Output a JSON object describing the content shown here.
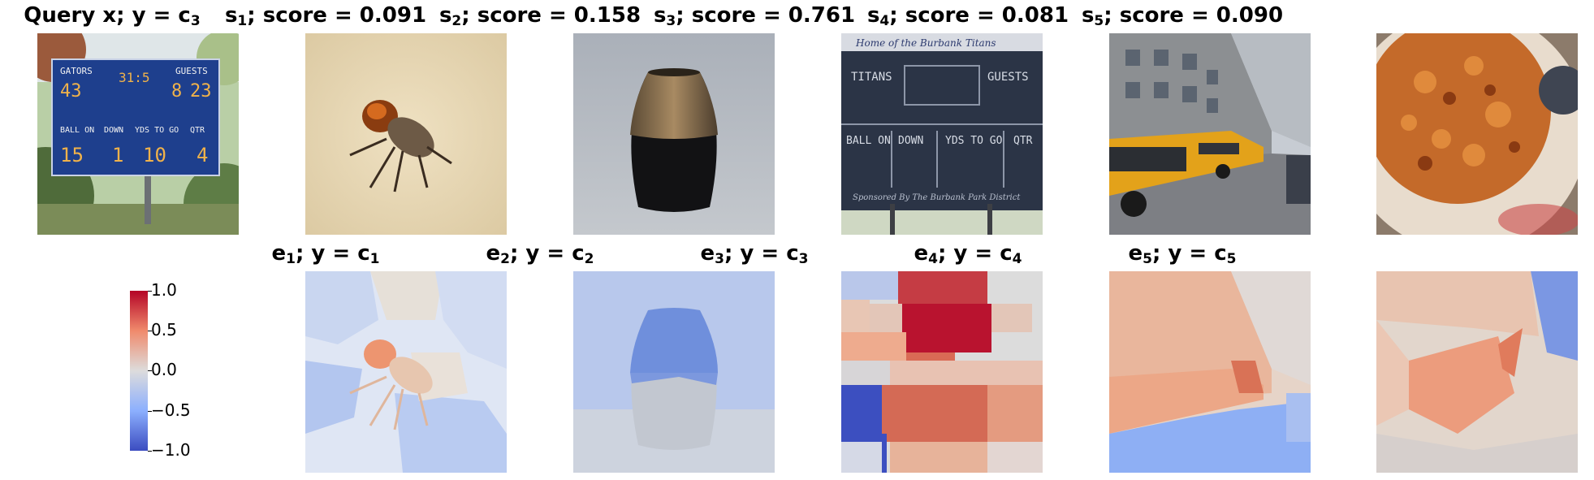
{
  "top_titles": [
    {
      "pre": "Query x; y = c",
      "sub": "3",
      "post": ""
    },
    {
      "pre": "s",
      "sub": "1",
      "post": "; score = 0.091"
    },
    {
      "pre": "s",
      "sub": "2",
      "post": "; score = 0.158"
    },
    {
      "pre": "s",
      "sub": "3",
      "post": "; score = 0.761"
    },
    {
      "pre": "s",
      "sub": "4",
      "post": "; score = 0.081"
    },
    {
      "pre": "s",
      "sub": "5",
      "post": "; score = 0.090"
    }
  ],
  "bottom_titles": [
    {
      "pre": "e",
      "sub": "1",
      "mid": "; y = c",
      "sub2": "1"
    },
    {
      "pre": "e",
      "sub": "2",
      "mid": "; y = c",
      "sub2": "2"
    },
    {
      "pre": "e",
      "sub": "3",
      "mid": "; y = c",
      "sub2": "3"
    },
    {
      "pre": "e",
      "sub": "4",
      "mid": "; y = c",
      "sub2": "4"
    },
    {
      "pre": "e",
      "sub": "5",
      "mid": "; y = c",
      "sub2": "5"
    }
  ],
  "scoreboard_text": {
    "top_left": "GATORS",
    "top_right": "GUESTS",
    "row2": [
      "DOWN",
      "YDS TO GO",
      "QTR"
    ],
    "row2_first": "BALL ON",
    "query_digits": [
      "43",
      "8",
      "23",
      "15",
      "1",
      "10",
      "4"
    ],
    "banner": "Home of the Burbank Titans",
    "home": "TITANS",
    "guests": "GUESTS",
    "sponsor": "Sponsored By The Burbank Park District"
  },
  "colorbar": {
    "min": -1.0,
    "max": 1.0,
    "ticks": [
      "1.0",
      "0.5",
      "0.0",
      "−0.5",
      "−1.0"
    ],
    "colors": [
      "#b40426",
      "#f08a6c",
      "#dddcdc",
      "#8caffe",
      "#3b4cc0"
    ]
  }
}
